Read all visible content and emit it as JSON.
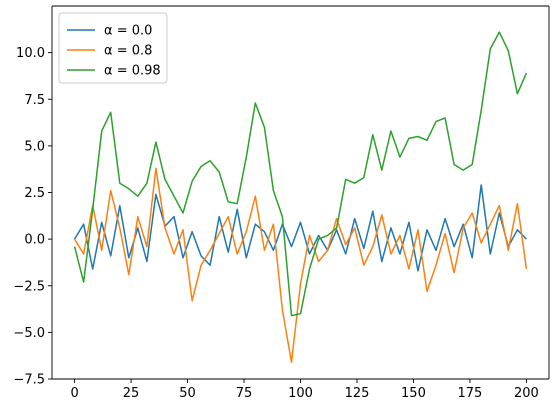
{
  "chart_data": {
    "type": "line",
    "title": "",
    "xlabel": "",
    "ylabel": "",
    "xlim": [
      -10,
      210
    ],
    "ylim": [
      -7.5,
      12.5
    ],
    "x_ticks": [
      0,
      25,
      50,
      75,
      100,
      125,
      150,
      175,
      200
    ],
    "y_ticks": [
      -7.5,
      -5.0,
      -2.5,
      0.0,
      2.5,
      5.0,
      7.5,
      10.0
    ],
    "x_tick_labels": [
      "0",
      "25",
      "50",
      "75",
      "100",
      "125",
      "150",
      "175",
      "200"
    ],
    "y_tick_labels": [
      "−7.5",
      "−5.0",
      "−2.5",
      "0.0",
      "2.5",
      "5.0",
      "7.5",
      "10.0"
    ],
    "grid": false,
    "legend_position": "upper-left",
    "series": [
      {
        "name": "α = 0.0",
        "color": "#1f77b4",
        "x": [
          0,
          4,
          8,
          12,
          16,
          20,
          24,
          28,
          32,
          36,
          40,
          44,
          48,
          52,
          56,
          60,
          64,
          68,
          72,
          76,
          80,
          84,
          88,
          92,
          96,
          100,
          104,
          108,
          112,
          116,
          120,
          124,
          128,
          132,
          136,
          140,
          144,
          148,
          152,
          156,
          160,
          164,
          168,
          172,
          176,
          180,
          184,
          188,
          192,
          196,
          200
        ],
        "values": [
          0.0,
          0.8,
          -1.6,
          0.9,
          -0.9,
          1.8,
          -1.0,
          0.6,
          -1.2,
          2.4,
          0.7,
          1.2,
          -1.0,
          0.4,
          -0.9,
          -1.4,
          1.2,
          -0.7,
          1.6,
          -1.0,
          0.8,
          0.4,
          -0.6,
          0.8,
          -0.4,
          0.9,
          -0.8,
          0.2,
          -0.6,
          0.5,
          -0.8,
          1.1,
          -0.5,
          1.5,
          -1.2,
          0.6,
          -0.8,
          0.9,
          -1.7,
          0.5,
          -0.6,
          1.1,
          -0.4,
          0.8,
          -1.0,
          2.9,
          -0.8,
          1.4,
          -0.4,
          0.5,
          0.0
        ]
      },
      {
        "name": "α = 0.8",
        "color": "#ff7f0e",
        "x": [
          0,
          4,
          8,
          12,
          16,
          20,
          24,
          28,
          32,
          36,
          40,
          44,
          48,
          52,
          56,
          60,
          64,
          68,
          72,
          76,
          80,
          84,
          88,
          92,
          96,
          100,
          104,
          108,
          112,
          116,
          120,
          124,
          128,
          132,
          136,
          140,
          144,
          148,
          152,
          156,
          160,
          164,
          168,
          172,
          176,
          180,
          184,
          188,
          192,
          196,
          200
        ],
        "values": [
          0.0,
          -0.8,
          1.8,
          -0.6,
          2.6,
          0.6,
          -1.9,
          1.2,
          -0.4,
          3.8,
          0.6,
          -0.8,
          0.5,
          -3.3,
          -1.4,
          -0.6,
          0.3,
          1.2,
          -0.8,
          0.4,
          2.3,
          -0.6,
          0.8,
          -3.8,
          -6.6,
          -2.4,
          0.2,
          -1.2,
          -0.6,
          1.1,
          -0.3,
          0.6,
          -1.4,
          -0.4,
          1.3,
          -0.8,
          0.2,
          -1.6,
          0.5,
          -2.8,
          -1.4,
          0.3,
          -1.8,
          0.6,
          1.4,
          -0.2,
          0.8,
          1.8,
          -0.6,
          1.9,
          -1.6
        ]
      },
      {
        "name": "α = 0.98",
        "color": "#2ca02c",
        "x": [
          0,
          4,
          8,
          12,
          16,
          20,
          24,
          28,
          32,
          36,
          40,
          44,
          48,
          52,
          56,
          60,
          64,
          68,
          72,
          76,
          80,
          84,
          88,
          92,
          96,
          100,
          104,
          108,
          112,
          116,
          120,
          124,
          128,
          132,
          136,
          140,
          144,
          148,
          152,
          156,
          160,
          164,
          168,
          172,
          176,
          180,
          184,
          188,
          192,
          196,
          200
        ],
        "values": [
          -0.4,
          -2.3,
          1.6,
          5.8,
          6.8,
          3.0,
          2.7,
          2.3,
          3.0,
          5.2,
          3.2,
          2.3,
          1.4,
          3.1,
          3.9,
          4.2,
          3.6,
          2.0,
          1.9,
          4.4,
          7.3,
          6.0,
          2.6,
          1.2,
          -4.1,
          -4.0,
          -1.6,
          0.0,
          0.2,
          0.6,
          3.2,
          3.0,
          3.3,
          5.6,
          3.7,
          5.8,
          4.4,
          5.4,
          5.5,
          5.3,
          6.3,
          6.5,
          4.0,
          3.7,
          4.0,
          6.9,
          10.2,
          11.1,
          10.1,
          7.8,
          8.9
        ]
      }
    ]
  }
}
